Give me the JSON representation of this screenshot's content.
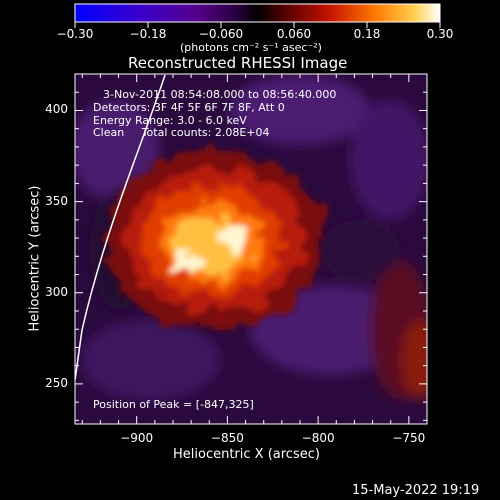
{
  "colorbar": {
    "ticks": [
      "-0.30",
      "-0.18",
      "-0.060",
      "0.060",
      "0.18",
      "0.30"
    ],
    "units": "(photons cm⁻² s⁻¹ asec⁻²)",
    "colors": [
      "#0000ff",
      "#3a00cc",
      "#55008c",
      "#2a0040",
      "#000000",
      "#5a0000",
      "#c81400",
      "#ff7800",
      "#ffd050",
      "#ffffff"
    ]
  },
  "title": "Reconstructed RHESSI Image",
  "info": {
    "time_range": "3-Nov-2011 08:54:08.000 to 08:56:40.000",
    "detectors": "Detectors: 3F 4F 5F 6F 7F 8F, Att 0",
    "energy": "Energy Range: 3.0 - 6.0 keV",
    "clean": "Clean     Total counts: 2.08E+04",
    "peak": "Position of Peak = [-847,325]"
  },
  "axes": {
    "xlabel": "Heliocentric X (arcsec)",
    "ylabel": "Heliocentric Y (arcsec)",
    "xlim": [
      -934,
      -740
    ],
    "ylim": [
      228,
      420
    ],
    "xticks": [
      -900,
      -850,
      -800,
      -750
    ],
    "yticks": [
      250,
      300,
      350,
      400
    ],
    "xtick_labels": [
      "−900",
      "−850",
      "−800",
      "−750"
    ],
    "ytick_labels": [
      "250",
      "300",
      "350",
      "400"
    ]
  },
  "peak": [
    -847,
    325
  ],
  "timestamp": "15-May-2022 19:19"
}
